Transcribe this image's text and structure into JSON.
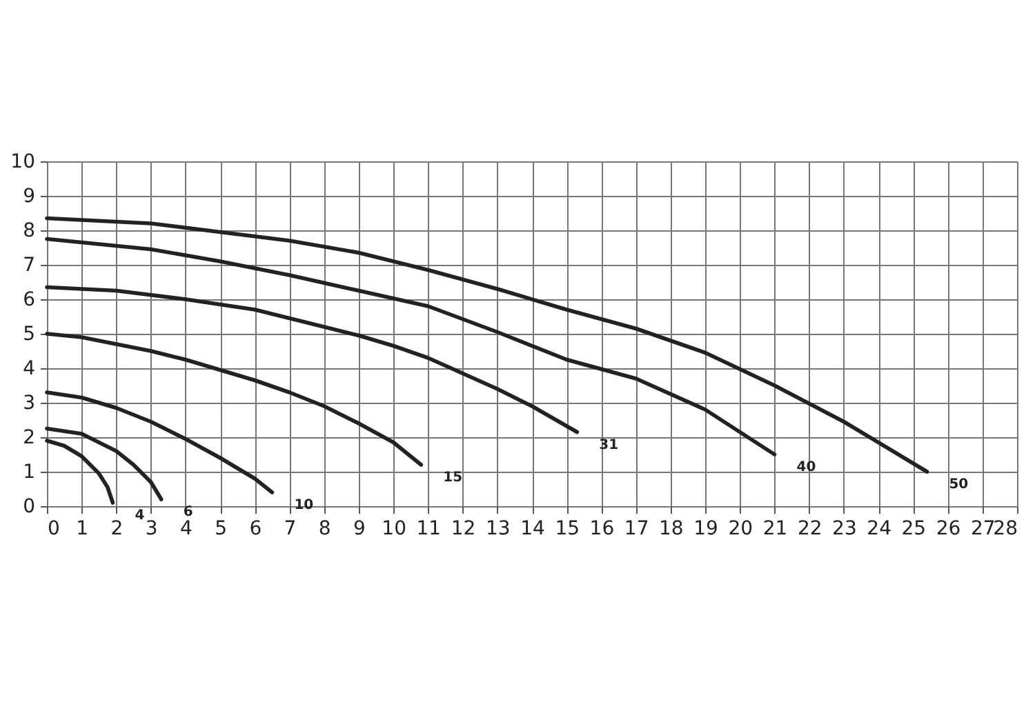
{
  "chart_data": {
    "type": "line",
    "xlim": [
      0,
      28
    ],
    "ylim": [
      0,
      10
    ],
    "xticks": [
      0,
      1,
      2,
      3,
      4,
      5,
      6,
      7,
      8,
      9,
      10,
      11,
      12,
      13,
      14,
      15,
      16,
      17,
      18,
      19,
      20,
      21,
      22,
      23,
      24,
      25,
      26,
      27,
      28
    ],
    "yticks": [
      0,
      1,
      2,
      3,
      4,
      5,
      6,
      7,
      8,
      9,
      10
    ],
    "grid": true,
    "legend": false,
    "marker": "none",
    "line_style": "solid",
    "series": [
      {
        "name": "4",
        "color": "#222222",
        "x": [
          0,
          0.5,
          1,
          1.5,
          1.75,
          1.9
        ],
        "values": [
          1.9,
          1.75,
          1.45,
          0.95,
          0.55,
          0.1
        ]
      },
      {
        "name": "6",
        "color": "#222222",
        "x": [
          0,
          1,
          2,
          2.5,
          3,
          3.3
        ],
        "values": [
          2.25,
          2.1,
          1.6,
          1.2,
          0.7,
          0.2
        ]
      },
      {
        "name": "10",
        "color": "#222222",
        "x": [
          0,
          1,
          2,
          3,
          4,
          5,
          6,
          6.5
        ],
        "values": [
          3.3,
          3.15,
          2.85,
          2.45,
          1.95,
          1.4,
          0.8,
          0.4
        ]
      },
      {
        "name": "15",
        "color": "#222222",
        "x": [
          0,
          1,
          2,
          3,
          4,
          5,
          6,
          7,
          8,
          9,
          10,
          10.8
        ],
        "values": [
          5.0,
          4.9,
          4.7,
          4.5,
          4.25,
          3.95,
          3.65,
          3.3,
          2.9,
          2.4,
          1.85,
          1.2
        ]
      },
      {
        "name": "31",
        "color": "#222222",
        "x": [
          0,
          2,
          4,
          6,
          8,
          9,
          10,
          11,
          12,
          13,
          14,
          15.3
        ],
        "values": [
          6.35,
          6.25,
          6.0,
          5.7,
          5.2,
          4.95,
          4.65,
          4.3,
          3.85,
          3.4,
          2.9,
          2.15
        ]
      },
      {
        "name": "40",
        "color": "#222222",
        "x": [
          0,
          3,
          5,
          7,
          9,
          11,
          13,
          15,
          17,
          19,
          21
        ],
        "values": [
          7.75,
          7.45,
          7.1,
          6.7,
          6.25,
          5.8,
          5.05,
          4.25,
          3.7,
          2.8,
          1.5
        ]
      },
      {
        "name": "50",
        "color": "#222222",
        "x": [
          0,
          3,
          5,
          7,
          9,
          11,
          13,
          15,
          17,
          19,
          21,
          23,
          25.4
        ],
        "values": [
          8.35,
          8.2,
          7.95,
          7.7,
          7.35,
          6.85,
          6.3,
          5.7,
          5.15,
          4.45,
          3.5,
          2.45,
          1.0
        ]
      }
    ]
  }
}
